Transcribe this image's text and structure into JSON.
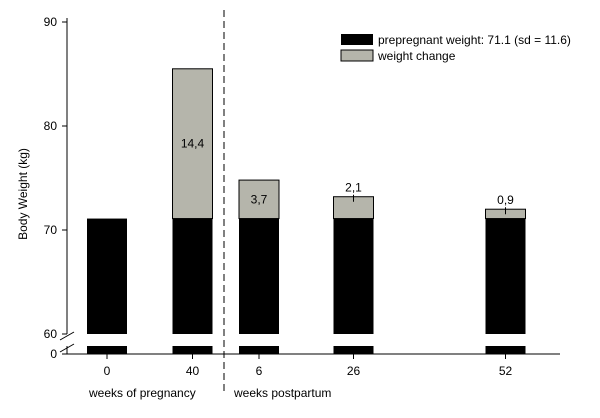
{
  "chart_data": {
    "type": "bar",
    "stacked": true,
    "categories": [
      "0",
      "40",
      "6",
      "26",
      "52"
    ],
    "x_positions": [
      0,
      40,
      46,
      66,
      92
    ],
    "base_value": 71.1,
    "series": [
      {
        "name": "prepregnant weight: 71.1 (sd = 11.6)",
        "values": [
          71.1,
          71.1,
          71.1,
          71.1,
          71.1
        ],
        "color": "#000000"
      },
      {
        "name": "weight change",
        "values": [
          0,
          14.4,
          3.7,
          2.1,
          0.9
        ],
        "color": "#b5b5ab"
      }
    ],
    "data_labels": [
      "",
      "14,4",
      "3,7",
      "2,1",
      "0,9"
    ],
    "ylabel": "Body Weight (kg)",
    "y_ticks": [
      "0",
      "60",
      "70",
      "80",
      "90"
    ],
    "ylim_upper": [
      60,
      90
    ],
    "axis_break": true,
    "group_labels": [
      "weeks of pregnancy",
      "weeks postpartum"
    ],
    "divider_between": [
      "40",
      "6"
    ],
    "legend_position": "top-right",
    "grid": false
  }
}
